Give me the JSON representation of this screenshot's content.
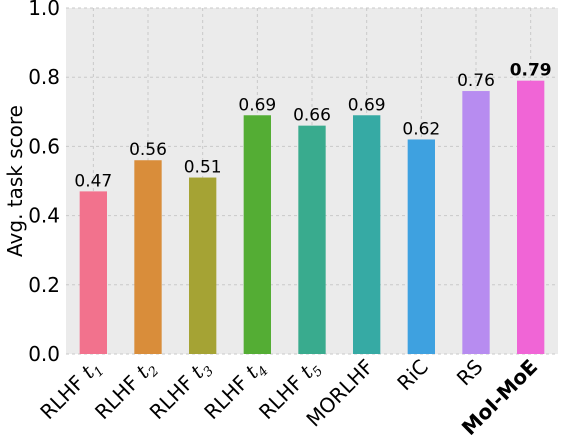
{
  "chart_data": {
    "type": "bar",
    "ylabel": "Avg. task score",
    "xlabel": "",
    "ylim": [
      0.0,
      1.0
    ],
    "yticks": [
      "0.0",
      "0.2",
      "0.4",
      "0.6",
      "0.8",
      "1.0"
    ],
    "grid": true,
    "categories": [
      {
        "name": "RLHF",
        "sub": "t",
        "idx": "1",
        "value": 0.47,
        "label": "0.47",
        "color": "#f2728d",
        "bold": false
      },
      {
        "name": "RLHF",
        "sub": "t",
        "idx": "2",
        "value": 0.56,
        "label": "0.56",
        "color": "#d98d3a",
        "bold": false
      },
      {
        "name": "RLHF",
        "sub": "t",
        "idx": "3",
        "value": 0.51,
        "label": "0.51",
        "color": "#a5a334",
        "bold": false
      },
      {
        "name": "RLHF",
        "sub": "t",
        "idx": "4",
        "value": 0.69,
        "label": "0.69",
        "color": "#54ad34",
        "bold": false
      },
      {
        "name": "RLHF",
        "sub": "t",
        "idx": "5",
        "value": 0.66,
        "label": "0.66",
        "color": "#39ab8e",
        "bold": false
      },
      {
        "name": "MORLHF",
        "sub": "",
        "idx": "",
        "value": 0.69,
        "label": "0.69",
        "color": "#36aaa4",
        "bold": false
      },
      {
        "name": "RiC",
        "sub": "",
        "idx": "",
        "value": 0.62,
        "label": "0.62",
        "color": "#3ea1e0",
        "bold": false
      },
      {
        "name": "RS",
        "sub": "",
        "idx": "",
        "value": 0.76,
        "label": "0.76",
        "color": "#b78cf0",
        "bold": false
      },
      {
        "name": "MoI-MoE",
        "sub": "",
        "idx": "",
        "value": 0.79,
        "label": "0.79",
        "color": "#f065d6",
        "bold": true
      }
    ]
  }
}
